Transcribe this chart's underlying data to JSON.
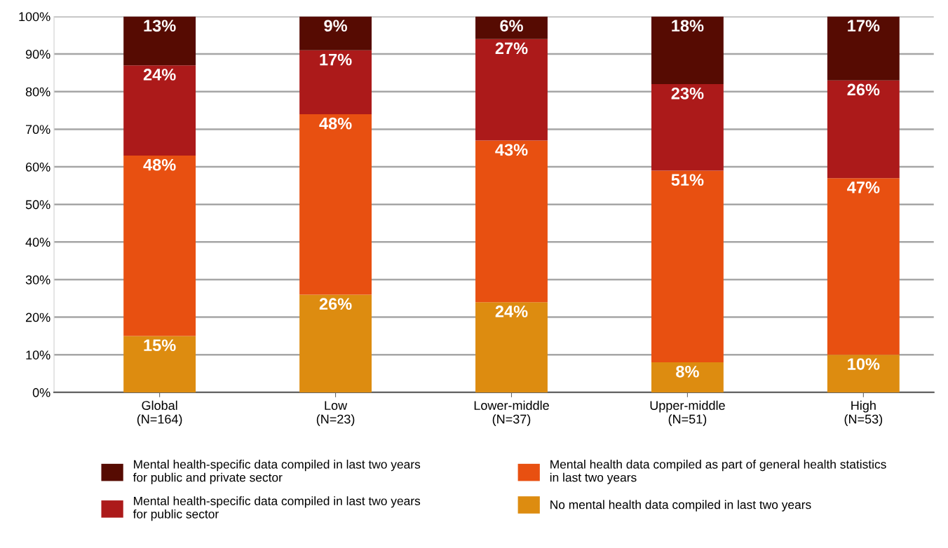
{
  "chart_data": {
    "type": "bar",
    "stacked": true,
    "categories": [
      "Global\n(N=164)",
      "Low\n(N=23)",
      "Lower-middle\n(N=37)",
      "Upper-middle\n(N=51)",
      "High\n(N=53)"
    ],
    "series": [
      {
        "name": "No mental health data compiled in last two years",
        "color": "#dd8c10",
        "values": [
          15,
          26,
          24,
          8,
          10
        ],
        "value_labels": [
          "15%",
          "26%",
          "24%",
          "8%",
          "10%"
        ]
      },
      {
        "name": "Mental health data compiled as part of general health statistics\nin last two years",
        "color": "#e85011",
        "values": [
          48,
          48,
          43,
          51,
          47
        ],
        "value_labels": [
          "48%",
          "48%",
          "43%",
          "51%",
          "47%"
        ]
      },
      {
        "name": "Mental health-specific data compiled in last two years\nfor public sector",
        "color": "#ac1a1a",
        "values": [
          24,
          17,
          27,
          23,
          26
        ],
        "value_labels": [
          "24%",
          "17%",
          "27%",
          "23%",
          "26%"
        ]
      },
      {
        "name": "Mental health-specific data compiled in last two years\nfor public and private sector",
        "color": "#560b02",
        "values": [
          13,
          9,
          6,
          18,
          17
        ],
        "value_labels": [
          "13%",
          "9%",
          "6%",
          "18%",
          "17%"
        ]
      }
    ],
    "ylim": [
      0,
      100
    ],
    "yticks": [
      {
        "value": 0,
        "label": "0%"
      },
      {
        "value": 10,
        "label": "10%"
      },
      {
        "value": 20,
        "label": "20%"
      },
      {
        "value": 30,
        "label": "30%"
      },
      {
        "value": 40,
        "label": "40%"
      },
      {
        "value": 50,
        "label": "50%"
      },
      {
        "value": 60,
        "label": "60%"
      },
      {
        "value": 70,
        "label": "70%"
      },
      {
        "value": 80,
        "label": "80%"
      },
      {
        "value": 90,
        "label": "90%"
      },
      {
        "value": 100,
        "label": "100%"
      }
    ],
    "grid": "y",
    "legend": "bottom"
  }
}
